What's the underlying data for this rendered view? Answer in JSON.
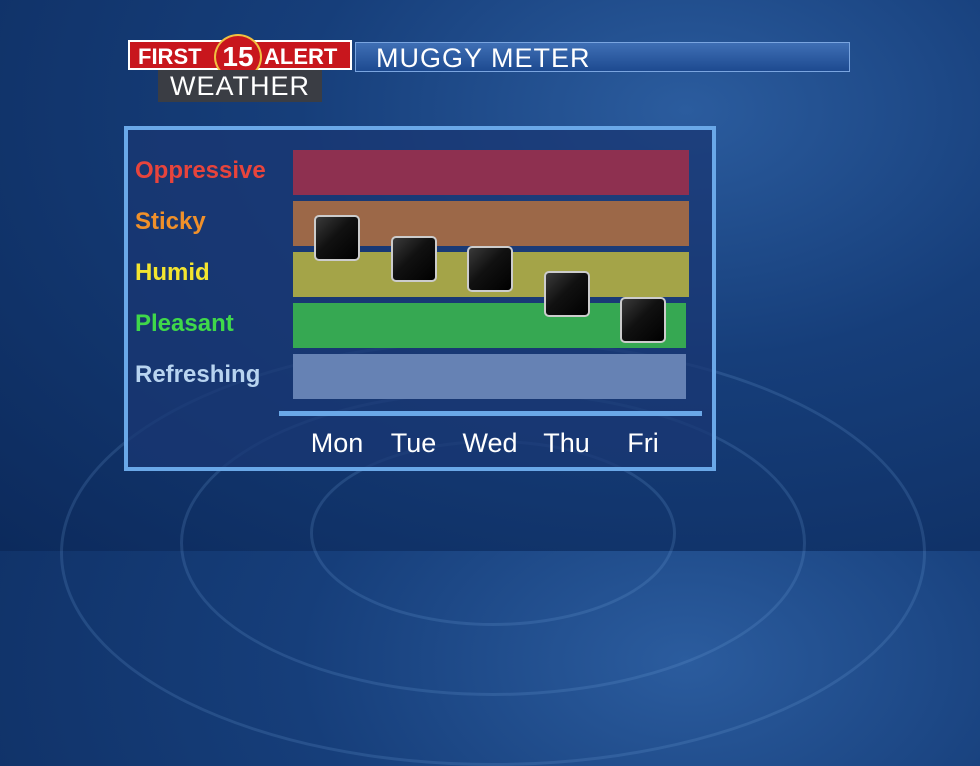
{
  "header": {
    "logo_text": [
      "FIRST",
      "15",
      "ALERT",
      "WEATHER"
    ],
    "title": "MUGGY METER"
  },
  "chart_data": {
    "type": "scatter",
    "title": "MUGGY METER",
    "categories": [
      "Mon",
      "Tue",
      "Wed",
      "Thu",
      "Fri"
    ],
    "levels": [
      {
        "name": "Oppressive",
        "value": 5,
        "label_color": "#e8443c",
        "band_color": "#8e3050"
      },
      {
        "name": "Sticky",
        "value": 4,
        "label_color": "#f0902a",
        "band_color": "#9c6848"
      },
      {
        "name": "Humid",
        "value": 3,
        "label_color": "#f3e530",
        "band_color": "#a4a448"
      },
      {
        "name": "Pleasant",
        "value": 2,
        "label_color": "#3fd84a",
        "band_color": "#36a852"
      },
      {
        "name": "Refreshing",
        "value": 1,
        "label_color": "#b8d4f0",
        "band_color": "#6682b4"
      }
    ],
    "values": [
      3.7,
      3.3,
      3.1,
      2.6,
      2.1
    ],
    "ylim": [
      0.5,
      5.5
    ]
  }
}
